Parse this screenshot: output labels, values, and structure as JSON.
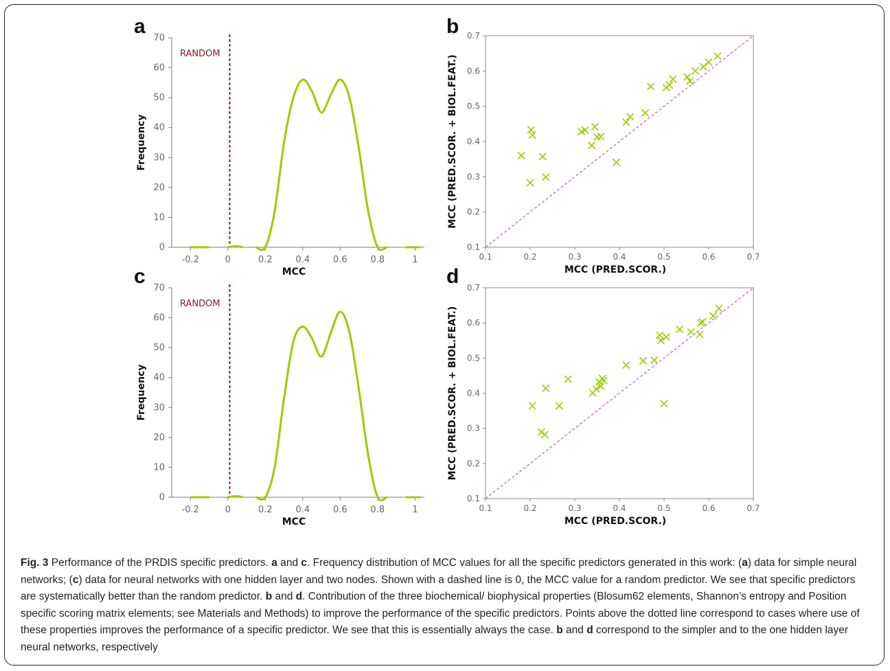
{
  "chart_data": [
    {
      "panel": "a",
      "type": "line",
      "xlabel": "MCC",
      "ylabel": "Frequency",
      "xlim": [
        -0.3,
        1.05
      ],
      "ylim": [
        0,
        70
      ],
      "x_ticks": [
        "-0.2",
        "0",
        "0.2",
        "0.4",
        "0.6",
        "0.8",
        "1"
      ],
      "y_ticks": [
        "0",
        "10",
        "20",
        "30",
        "40",
        "50",
        "60",
        "70"
      ],
      "reference_line": {
        "x": 0.01,
        "label": "RANDOM",
        "style": "dashed",
        "color": "#8b1a2b"
      },
      "line_color": "#99cc00",
      "x": [
        -0.2,
        -0.1,
        0.0,
        0.07,
        0.15,
        0.2,
        0.25,
        0.3,
        0.35,
        0.4,
        0.45,
        0.5,
        0.55,
        0.6,
        0.65,
        0.7,
        0.75,
        0.8,
        0.85,
        0.95,
        1.03
      ],
      "y": [
        0,
        0,
        0,
        0,
        0,
        0,
        12,
        35,
        50,
        56,
        52,
        45,
        51,
        56,
        50,
        33,
        12,
        0,
        0,
        0,
        0
      ]
    },
    {
      "panel": "b",
      "type": "scatter",
      "xlabel": "MCC (PRED.SCOR.)",
      "ylabel": "MCC (PRED.SCOR. + BIOL.FEAT.)",
      "xlim": [
        0.1,
        0.7
      ],
      "ylim": [
        0.1,
        0.7
      ],
      "x_ticks": [
        "0.1",
        "0.2",
        "0.3",
        "0.4",
        "0.5",
        "0.6",
        "0.7"
      ],
      "y_ticks": [
        "0.1",
        "0.2",
        "0.3",
        "0.4",
        "0.5",
        "0.6",
        "0.7"
      ],
      "diagonal": true,
      "marker_color": "#99cc00",
      "points": [
        [
          0.18,
          0.36
        ],
        [
          0.2,
          0.283
        ],
        [
          0.202,
          0.433
        ],
        [
          0.205,
          0.418
        ],
        [
          0.228,
          0.357
        ],
        [
          0.235,
          0.299
        ],
        [
          0.315,
          0.428
        ],
        [
          0.323,
          0.432
        ],
        [
          0.338,
          0.389
        ],
        [
          0.345,
          0.442
        ],
        [
          0.35,
          0.413
        ],
        [
          0.358,
          0.414
        ],
        [
          0.393,
          0.341
        ],
        [
          0.415,
          0.455
        ],
        [
          0.424,
          0.47
        ],
        [
          0.458,
          0.481
        ],
        [
          0.47,
          0.556
        ],
        [
          0.505,
          0.553
        ],
        [
          0.512,
          0.56
        ],
        [
          0.52,
          0.577
        ],
        [
          0.552,
          0.583
        ],
        [
          0.558,
          0.571
        ],
        [
          0.57,
          0.6
        ],
        [
          0.588,
          0.612
        ],
        [
          0.6,
          0.625
        ],
        [
          0.62,
          0.642
        ]
      ]
    },
    {
      "panel": "c",
      "type": "line",
      "xlabel": "MCC",
      "ylabel": "Frequency",
      "xlim": [
        -0.3,
        1.05
      ],
      "ylim": [
        0,
        70
      ],
      "x_ticks": [
        "-0.2",
        "0",
        "0.2",
        "0.4",
        "0.6",
        "0.8",
        "1"
      ],
      "y_ticks": [
        "0",
        "10",
        "20",
        "30",
        "40",
        "50",
        "60",
        "70"
      ],
      "reference_line": {
        "x": 0.01,
        "label": "RANDOM",
        "style": "dashed",
        "color": "#8b1a2b"
      },
      "line_color": "#99cc00",
      "x": [
        -0.2,
        -0.1,
        0.0,
        0.07,
        0.15,
        0.2,
        0.25,
        0.3,
        0.35,
        0.4,
        0.45,
        0.5,
        0.55,
        0.6,
        0.65,
        0.7,
        0.75,
        0.8,
        0.85,
        0.95,
        1.03
      ],
      "y": [
        0,
        0,
        0,
        0,
        0,
        0,
        10,
        33,
        52,
        57,
        53,
        47,
        55,
        62,
        55,
        36,
        14,
        0,
        0,
        0,
        0
      ]
    },
    {
      "panel": "d",
      "type": "scatter",
      "xlabel": "MCC (PRED.SCOR.)",
      "ylabel": "MCC (PRED.SCOR. + BIOL.FEAT.)",
      "xlim": [
        0.1,
        0.7
      ],
      "ylim": [
        0.1,
        0.7
      ],
      "x_ticks": [
        "0.1",
        "0.2",
        "0.3",
        "0.4",
        "0.5",
        "0.6",
        "0.7"
      ],
      "y_ticks": [
        "0.1",
        "0.2",
        "0.3",
        "0.4",
        "0.5",
        "0.6",
        "0.7"
      ],
      "diagonal": true,
      "marker_color": "#99cc00",
      "points": [
        [
          0.205,
          0.364
        ],
        [
          0.225,
          0.29
        ],
        [
          0.233,
          0.282
        ],
        [
          0.235,
          0.414
        ],
        [
          0.265,
          0.364
        ],
        [
          0.285,
          0.44
        ],
        [
          0.34,
          0.401
        ],
        [
          0.348,
          0.412
        ],
        [
          0.355,
          0.432
        ],
        [
          0.358,
          0.42
        ],
        [
          0.362,
          0.442
        ],
        [
          0.365,
          0.436
        ],
        [
          0.415,
          0.48
        ],
        [
          0.453,
          0.492
        ],
        [
          0.478,
          0.494
        ],
        [
          0.49,
          0.565
        ],
        [
          0.493,
          0.55
        ],
        [
          0.5,
          0.37
        ],
        [
          0.505,
          0.56
        ],
        [
          0.535,
          0.582
        ],
        [
          0.56,
          0.574
        ],
        [
          0.58,
          0.567
        ],
        [
          0.582,
          0.6
        ],
        [
          0.586,
          0.603
        ],
        [
          0.61,
          0.62
        ],
        [
          0.623,
          0.641
        ]
      ]
    }
  ],
  "caption": {
    "fig_label": "Fig. 3",
    "segments": [
      {
        "t": " Performance of the PRDIS specific predictors. ",
        "b": false
      },
      {
        "t": "a",
        "b": true
      },
      {
        "t": " and ",
        "b": false
      },
      {
        "t": "c",
        "b": true
      },
      {
        "t": ". Frequency distribution of MCC values for all the specific predictors generated in this work: (",
        "b": false
      },
      {
        "t": "a",
        "b": true
      },
      {
        "t": ") data for simple neural networks; (",
        "b": false
      },
      {
        "t": "c",
        "b": true
      },
      {
        "t": ") data for neural networks with one hidden layer and two nodes. Shown with a dashed line is 0, the MCC value for a random predictor. We see that specific predictors are systematically better than the random predictor. ",
        "b": false
      },
      {
        "t": "b",
        "b": true
      },
      {
        "t": " and ",
        "b": false
      },
      {
        "t": "d",
        "b": true
      },
      {
        "t": ". Contribution of the three biochemical/ biophysical properties (Blosum62 elements, Shannon’s entropy and Position specific scoring matrix elements; see Materials and Methods) to improve the performance of the specific predictors. Points above the dotted line correspond to cases where use of these properties improves the performance of a specific predictor. We see that this is essentially always the case. ",
        "b": false
      },
      {
        "t": "b",
        "b": true
      },
      {
        "t": " and ",
        "b": false
      },
      {
        "t": "d",
        "b": true
      },
      {
        "t": " correspond to the simpler and to the one hidden layer neural networks, respectively",
        "b": false
      }
    ]
  }
}
